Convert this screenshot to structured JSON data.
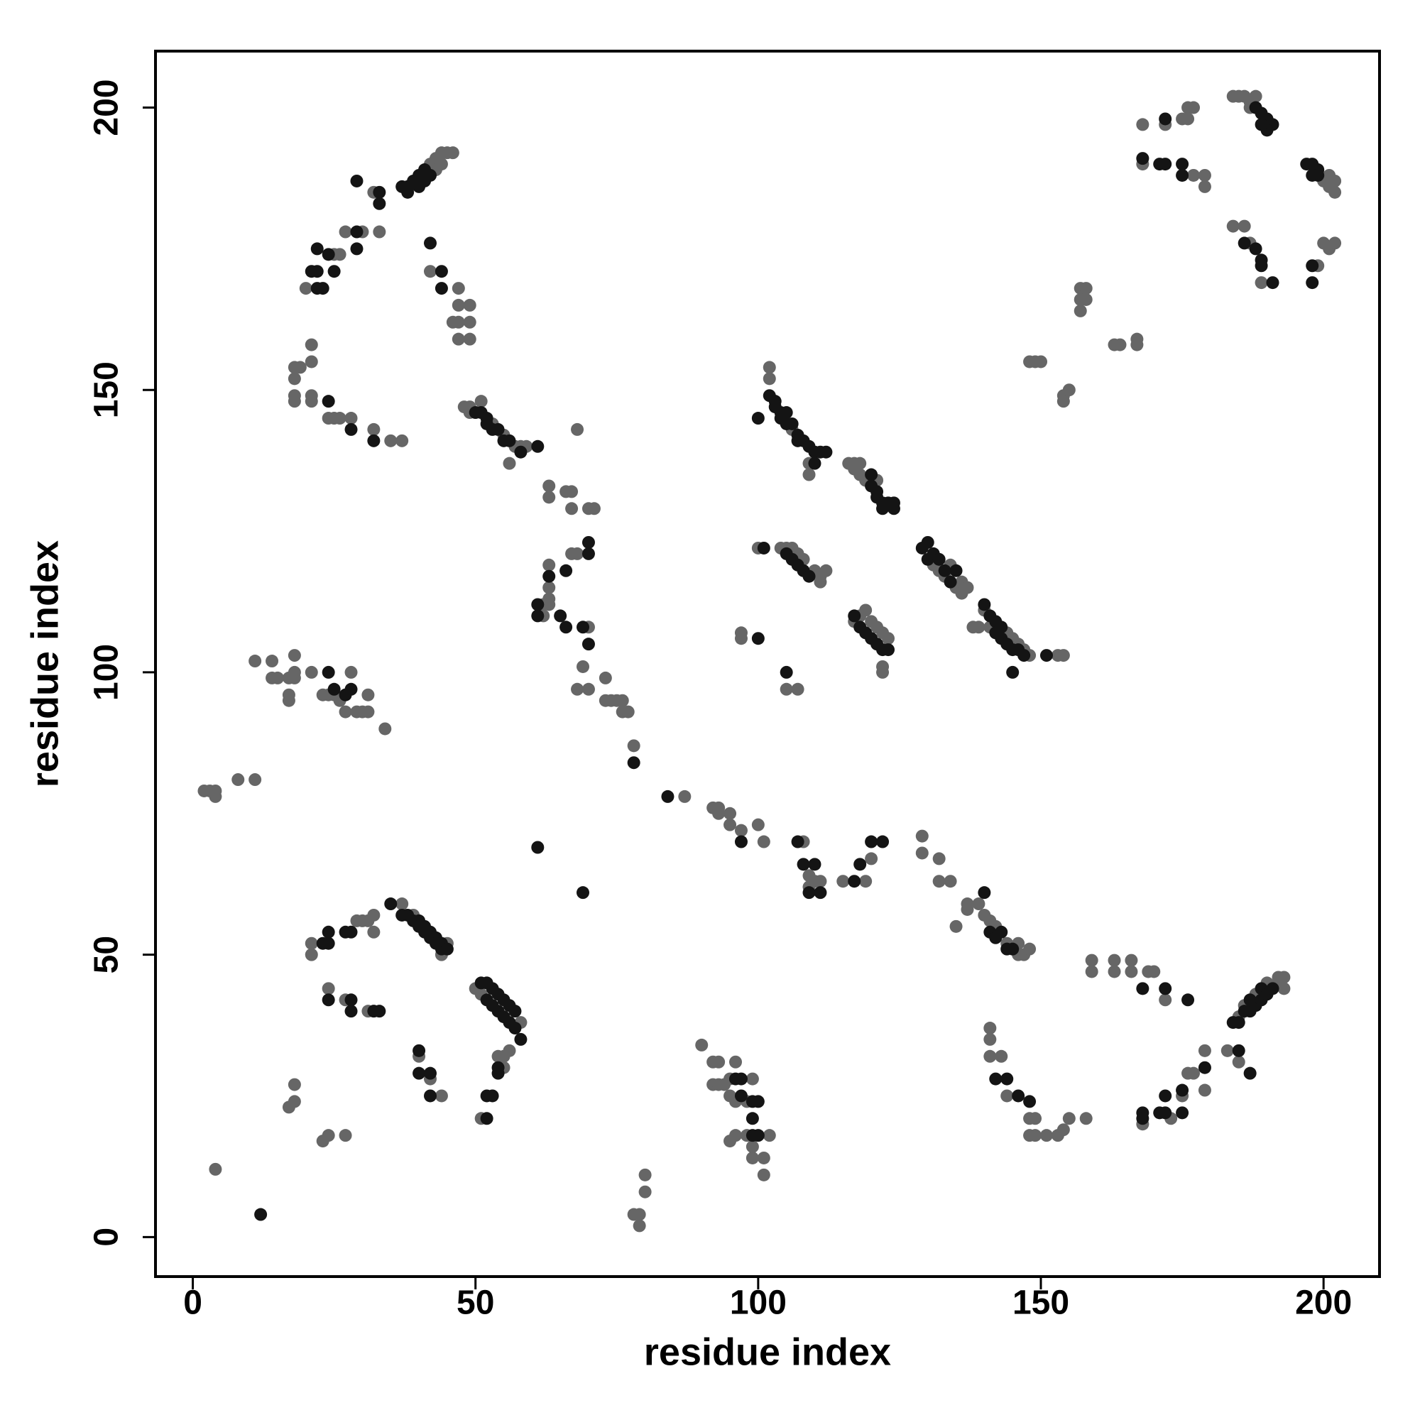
{
  "chart_data": {
    "type": "scatter",
    "x_label": "residue index",
    "y_label": "residue index",
    "xlim": [
      -6.6,
      209.9
    ],
    "ylim": [
      -7,
      210
    ],
    "xticks": [
      0,
      50,
      100,
      150,
      200
    ],
    "yticks": [
      0,
      50,
      100,
      150,
      200
    ],
    "series": [
      {
        "color": "#666666",
        "x": [
          42,
          43,
          43,
          44,
          44,
          45,
          46,
          32,
          33,
          30,
          27,
          26,
          25,
          20,
          18,
          19,
          21,
          21,
          18,
          18,
          18,
          21,
          21,
          24,
          25,
          26,
          28,
          32,
          35,
          37,
          42,
          47,
          47,
          49,
          46,
          47,
          49,
          47,
          49,
          48,
          49,
          49,
          51,
          53,
          55,
          57,
          58,
          59,
          56,
          68,
          63,
          63,
          66,
          67,
          67,
          70,
          71,
          67,
          68,
          63,
          63,
          63,
          62,
          63,
          62,
          70,
          69,
          68,
          70,
          73,
          73,
          74,
          75,
          76,
          76,
          77,
          78,
          87,
          92,
          93,
          93,
          95,
          95,
          97,
          100,
          101,
          108,
          109,
          109,
          110,
          111,
          115,
          119,
          120,
          129,
          129,
          132,
          132,
          134,
          135,
          137,
          137,
          139,
          140,
          141,
          142,
          144,
          146,
          146,
          147,
          148,
          159,
          159,
          163,
          163,
          166,
          166,
          169,
          170,
          172,
          141,
          141,
          141,
          143,
          144,
          148,
          149,
          148,
          149,
          151,
          153,
          154,
          155,
          158,
          168,
          173,
          175,
          176,
          177,
          179,
          179,
          183,
          185,
          185,
          186,
          188,
          190,
          192,
          192,
          193,
          193,
          184,
          185,
          186,
          187,
          188,
          187,
          168,
          168,
          172,
          175,
          176,
          177,
          176,
          177,
          179,
          179,
          200,
          201,
          202,
          202,
          201,
          184,
          186,
          187,
          189,
          199,
          200,
          201,
          202,
          157,
          158,
          157,
          158,
          157,
          163,
          164,
          167,
          167,
          150,
          149,
          148,
          155,
          154,
          154,
          102,
          102,
          106,
          109,
          109,
          116,
          117,
          117,
          118,
          118,
          119,
          121,
          100,
          104,
          105,
          106,
          107,
          108,
          110,
          111,
          112,
          111,
          131,
          132,
          133,
          134,
          135,
          136,
          136,
          137,
          117,
          118,
          119,
          120,
          121,
          122,
          123,
          122,
          122,
          140,
          141,
          144,
          145,
          146,
          147,
          148,
          153,
          154,
          138,
          139,
          97,
          97,
          105,
          107,
          2,
          3,
          4,
          4,
          8,
          11,
          11,
          14,
          14,
          15,
          17,
          17,
          17,
          18,
          18,
          18,
          21,
          23,
          24,
          25,
          26,
          27,
          28,
          29,
          30,
          31,
          31,
          34,
          4,
          21,
          21,
          29,
          30,
          31,
          32,
          32,
          37,
          39,
          45,
          44,
          24,
          27,
          31,
          40,
          42,
          44,
          17,
          18,
          18,
          23,
          24,
          27,
          50,
          51,
          58,
          56,
          55,
          54,
          51,
          55,
          90,
          92,
          93,
          92,
          93,
          94,
          95,
          95,
          96,
          96,
          98,
          99,
          98,
          96,
          95,
          99,
          99,
          101,
          102,
          101,
          78,
          79,
          79,
          80,
          80
        ],
        "values": [
          190,
          191,
          189,
          192,
          190,
          192,
          192,
          185,
          178,
          178,
          178,
          174,
          174,
          168,
          154,
          154,
          158,
          155,
          152,
          149,
          148,
          149,
          148,
          145,
          145,
          145,
          145,
          143,
          141,
          141,
          171,
          168,
          165,
          165,
          162,
          162,
          162,
          159,
          159,
          147,
          147,
          146,
          148,
          144,
          142,
          140,
          140,
          140,
          137,
          143,
          133,
          131,
          132,
          132,
          129,
          129,
          129,
          121,
          121,
          119,
          115,
          113,
          112,
          112,
          110,
          108,
          101,
          97,
          97,
          99,
          95,
          95,
          95,
          95,
          93,
          93,
          87,
          78,
          76,
          76,
          75,
          75,
          73,
          72,
          73,
          70,
          70,
          64,
          62,
          63,
          63,
          63,
          63,
          67,
          71,
          68,
          67,
          63,
          63,
          55,
          59,
          58,
          59,
          57,
          56,
          55,
          52,
          52,
          50,
          50,
          51,
          49,
          47,
          49,
          47,
          49,
          47,
          47,
          47,
          42,
          37,
          35,
          32,
          32,
          25,
          21,
          21,
          18,
          18,
          18,
          18,
          19,
          21,
          21,
          20,
          21,
          25,
          29,
          29,
          33,
          26,
          33,
          31,
          39,
          41,
          43,
          45,
          45,
          46,
          46,
          44,
          202,
          202,
          202,
          201,
          202,
          200,
          197,
          190,
          197,
          198,
          200,
          200,
          198,
          188,
          188,
          186,
          187,
          188,
          187,
          185,
          186,
          179,
          179,
          176,
          169,
          172,
          176,
          175,
          176,
          168,
          168,
          166,
          166,
          164,
          158,
          158,
          159,
          158,
          155,
          155,
          155,
          150,
          149,
          148,
          154,
          152,
          143,
          135,
          137,
          137,
          137,
          136,
          135,
          137,
          134,
          134,
          122,
          122,
          122,
          122,
          121,
          120,
          118,
          116,
          118,
          117,
          119,
          118,
          117,
          119,
          115,
          116,
          114,
          115,
          109,
          110,
          111,
          109,
          108,
          107,
          106,
          101,
          100,
          111,
          108,
          107,
          106,
          105,
          104,
          103,
          103,
          103,
          108,
          108,
          107,
          106,
          97,
          97,
          79,
          79,
          79,
          78,
          81,
          81,
          102,
          102,
          99,
          99,
          99,
          96,
          95,
          103,
          100,
          99,
          100,
          96,
          96,
          96,
          95,
          93,
          100,
          93,
          93,
          93,
          96,
          90,
          12,
          52,
          50,
          56,
          56,
          56,
          57,
          54,
          59,
          57,
          52,
          50,
          44,
          42,
          40,
          32,
          28,
          25,
          23,
          24,
          27,
          17,
          18,
          18,
          44,
          43,
          38,
          33,
          32,
          32,
          21,
          30,
          34,
          31,
          31,
          27,
          27,
          27,
          28,
          25,
          31,
          24,
          24,
          28,
          18,
          18,
          17,
          16,
          14,
          14,
          18,
          11,
          4,
          4,
          2,
          11,
          8
        ]
      },
      {
        "color": "#141414",
        "x": [
          37,
          38,
          38,
          39,
          40,
          40,
          41,
          41,
          42,
          29,
          33,
          33,
          29,
          29,
          24,
          22,
          25,
          22,
          21,
          23,
          22,
          24,
          28,
          32,
          42,
          44,
          44,
          50,
          51,
          52,
          52,
          53,
          54,
          55,
          56,
          61,
          58,
          63,
          66,
          61,
          61,
          65,
          66,
          69,
          70,
          70,
          70,
          78,
          84,
          97,
          107,
          108,
          110,
          109,
          111,
          117,
          118,
          120,
          122,
          140,
          141,
          142,
          143,
          144,
          145,
          168,
          172,
          176,
          146,
          148,
          142,
          144,
          168,
          168,
          171,
          172,
          172,
          175,
          175,
          179,
          185,
          187,
          184,
          185,
          186,
          187,
          187,
          188,
          189,
          189,
          190,
          191,
          188,
          189,
          190,
          191,
          190,
          189,
          168,
          171,
          172,
          172,
          175,
          175,
          197,
          198,
          199,
          199,
          198,
          186,
          188,
          189,
          189,
          191,
          198,
          198,
          102,
          103,
          103,
          104,
          104,
          105,
          105,
          106,
          107,
          107,
          108,
          109,
          110,
          111,
          112,
          110,
          100,
          120,
          121,
          121,
          122,
          122,
          123,
          124,
          124,
          120,
          105,
          106,
          107,
          108,
          109,
          101,
          130,
          130,
          131,
          132,
          129,
          133,
          134,
          135,
          117,
          118,
          119,
          120,
          121,
          122,
          123,
          140,
          141,
          142,
          142,
          143,
          143,
          144,
          145,
          146,
          147,
          145,
          100,
          105,
          151,
          24,
          25,
          27,
          28,
          23,
          24,
          24,
          27,
          28,
          35,
          37,
          38,
          39,
          40,
          40,
          41,
          41,
          42,
          42,
          43,
          43,
          44,
          44,
          45,
          24,
          28,
          28,
          32,
          33,
          40,
          40,
          42,
          42,
          51,
          52,
          52,
          53,
          53,
          54,
          54,
          55,
          55,
          56,
          56,
          57,
          57,
          58,
          54,
          53,
          52,
          52,
          54,
          61,
          69,
          96,
          97,
          97,
          99,
          100,
          99,
          100,
          99,
          12
        ],
        "values": [
          186,
          186,
          185,
          187,
          188,
          186,
          189,
          187,
          188,
          187,
          185,
          183,
          178,
          175,
          174,
          175,
          171,
          171,
          171,
          168,
          168,
          148,
          143,
          141,
          176,
          171,
          168,
          146,
          146,
          145,
          144,
          143,
          143,
          141,
          141,
          140,
          139,
          117,
          118,
          112,
          110,
          110,
          108,
          108,
          105,
          121,
          123,
          84,
          78,
          70,
          70,
          66,
          66,
          61,
          61,
          63,
          66,
          70,
          70,
          61,
          54,
          53,
          54,
          51,
          51,
          44,
          44,
          42,
          25,
          24,
          28,
          28,
          22,
          21,
          22,
          22,
          25,
          22,
          26,
          30,
          33,
          29,
          38,
          38,
          40,
          40,
          42,
          41,
          42,
          44,
          43,
          44,
          200,
          199,
          198,
          197,
          196,
          197,
          191,
          190,
          190,
          198,
          190,
          188,
          190,
          190,
          189,
          188,
          188,
          176,
          175,
          173,
          172,
          169,
          172,
          169,
          149,
          148,
          147,
          146,
          145,
          146,
          144,
          144,
          142,
          141,
          141,
          140,
          139,
          139,
          139,
          137,
          145,
          133,
          132,
          131,
          130,
          129,
          130,
          130,
          129,
          135,
          121,
          120,
          119,
          118,
          117,
          122,
          123,
          120,
          121,
          120,
          122,
          118,
          116,
          118,
          110,
          108,
          107,
          106,
          105,
          104,
          104,
          112,
          110,
          109,
          107,
          108,
          106,
          105,
          104,
          104,
          103,
          100,
          106,
          100,
          103,
          100,
          97,
          96,
          97,
          52,
          52,
          54,
          54,
          54,
          59,
          57,
          57,
          56,
          56,
          55,
          55,
          54,
          54,
          53,
          53,
          52,
          52,
          51,
          51,
          42,
          42,
          40,
          40,
          40,
          33,
          29,
          29,
          25,
          45,
          45,
          42,
          44,
          41,
          43,
          40,
          42,
          39,
          41,
          38,
          40,
          37,
          35,
          29,
          25,
          25,
          21,
          30,
          69,
          61,
          28,
          28,
          25,
          24,
          24,
          21,
          18,
          18,
          4
        ]
      }
    ]
  }
}
